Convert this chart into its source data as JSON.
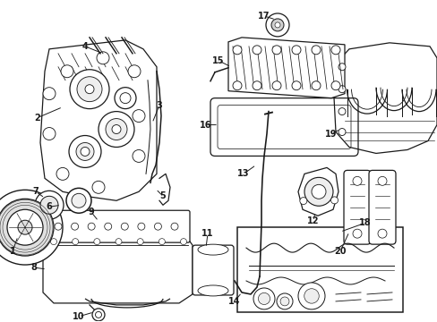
{
  "bg_color": "#ffffff",
  "fig_width": 4.89,
  "fig_height": 3.6,
  "dpi": 100,
  "line_color": "#1a1a1a",
  "label_fontsize": 7.0
}
